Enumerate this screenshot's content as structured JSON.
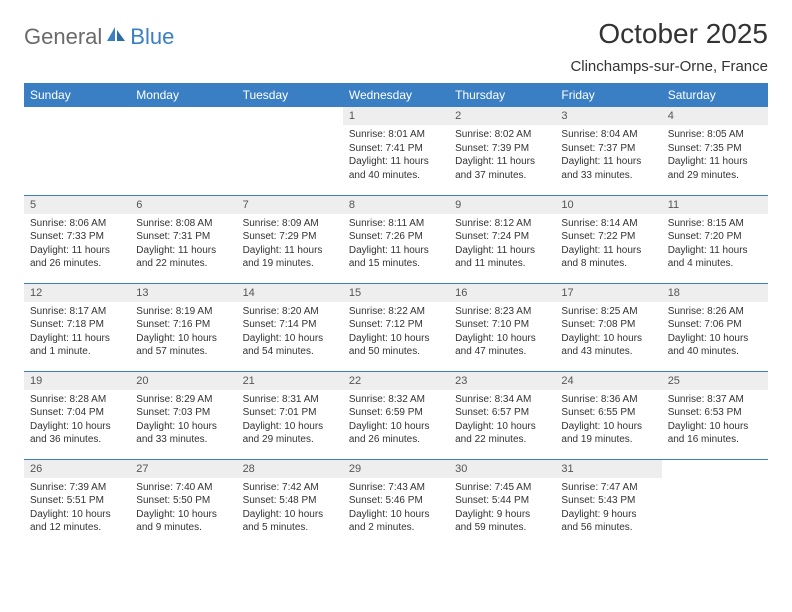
{
  "logo": {
    "part1": "General",
    "part2": "Blue"
  },
  "title": "October 2025",
  "location": "Clinchamps-sur-Orne, France",
  "colors": {
    "header_bg": "#3a7fc4",
    "header_text": "#ffffff",
    "daynum_bg": "#eeeeee",
    "border": "#3a7fc4",
    "text": "#333333",
    "logo_gray": "#6b6b6b",
    "logo_blue": "#3a7fc4"
  },
  "weekdays": [
    "Sunday",
    "Monday",
    "Tuesday",
    "Wednesday",
    "Thursday",
    "Friday",
    "Saturday"
  ],
  "weeks": [
    [
      null,
      null,
      null,
      {
        "n": "1",
        "sr": "8:01 AM",
        "ss": "7:41 PM",
        "dl": "11 hours and 40 minutes."
      },
      {
        "n": "2",
        "sr": "8:02 AM",
        "ss": "7:39 PM",
        "dl": "11 hours and 37 minutes."
      },
      {
        "n": "3",
        "sr": "8:04 AM",
        "ss": "7:37 PM",
        "dl": "11 hours and 33 minutes."
      },
      {
        "n": "4",
        "sr": "8:05 AM",
        "ss": "7:35 PM",
        "dl": "11 hours and 29 minutes."
      }
    ],
    [
      {
        "n": "5",
        "sr": "8:06 AM",
        "ss": "7:33 PM",
        "dl": "11 hours and 26 minutes."
      },
      {
        "n": "6",
        "sr": "8:08 AM",
        "ss": "7:31 PM",
        "dl": "11 hours and 22 minutes."
      },
      {
        "n": "7",
        "sr": "8:09 AM",
        "ss": "7:29 PM",
        "dl": "11 hours and 19 minutes."
      },
      {
        "n": "8",
        "sr": "8:11 AM",
        "ss": "7:26 PM",
        "dl": "11 hours and 15 minutes."
      },
      {
        "n": "9",
        "sr": "8:12 AM",
        "ss": "7:24 PM",
        "dl": "11 hours and 11 minutes."
      },
      {
        "n": "10",
        "sr": "8:14 AM",
        "ss": "7:22 PM",
        "dl": "11 hours and 8 minutes."
      },
      {
        "n": "11",
        "sr": "8:15 AM",
        "ss": "7:20 PM",
        "dl": "11 hours and 4 minutes."
      }
    ],
    [
      {
        "n": "12",
        "sr": "8:17 AM",
        "ss": "7:18 PM",
        "dl": "11 hours and 1 minute."
      },
      {
        "n": "13",
        "sr": "8:19 AM",
        "ss": "7:16 PM",
        "dl": "10 hours and 57 minutes."
      },
      {
        "n": "14",
        "sr": "8:20 AM",
        "ss": "7:14 PM",
        "dl": "10 hours and 54 minutes."
      },
      {
        "n": "15",
        "sr": "8:22 AM",
        "ss": "7:12 PM",
        "dl": "10 hours and 50 minutes."
      },
      {
        "n": "16",
        "sr": "8:23 AM",
        "ss": "7:10 PM",
        "dl": "10 hours and 47 minutes."
      },
      {
        "n": "17",
        "sr": "8:25 AM",
        "ss": "7:08 PM",
        "dl": "10 hours and 43 minutes."
      },
      {
        "n": "18",
        "sr": "8:26 AM",
        "ss": "7:06 PM",
        "dl": "10 hours and 40 minutes."
      }
    ],
    [
      {
        "n": "19",
        "sr": "8:28 AM",
        "ss": "7:04 PM",
        "dl": "10 hours and 36 minutes."
      },
      {
        "n": "20",
        "sr": "8:29 AM",
        "ss": "7:03 PM",
        "dl": "10 hours and 33 minutes."
      },
      {
        "n": "21",
        "sr": "8:31 AM",
        "ss": "7:01 PM",
        "dl": "10 hours and 29 minutes."
      },
      {
        "n": "22",
        "sr": "8:32 AM",
        "ss": "6:59 PM",
        "dl": "10 hours and 26 minutes."
      },
      {
        "n": "23",
        "sr": "8:34 AM",
        "ss": "6:57 PM",
        "dl": "10 hours and 22 minutes."
      },
      {
        "n": "24",
        "sr": "8:36 AM",
        "ss": "6:55 PM",
        "dl": "10 hours and 19 minutes."
      },
      {
        "n": "25",
        "sr": "8:37 AM",
        "ss": "6:53 PM",
        "dl": "10 hours and 16 minutes."
      }
    ],
    [
      {
        "n": "26",
        "sr": "7:39 AM",
        "ss": "5:51 PM",
        "dl": "10 hours and 12 minutes."
      },
      {
        "n": "27",
        "sr": "7:40 AM",
        "ss": "5:50 PM",
        "dl": "10 hours and 9 minutes."
      },
      {
        "n": "28",
        "sr": "7:42 AM",
        "ss": "5:48 PM",
        "dl": "10 hours and 5 minutes."
      },
      {
        "n": "29",
        "sr": "7:43 AM",
        "ss": "5:46 PM",
        "dl": "10 hours and 2 minutes."
      },
      {
        "n": "30",
        "sr": "7:45 AM",
        "ss": "5:44 PM",
        "dl": "9 hours and 59 minutes."
      },
      {
        "n": "31",
        "sr": "7:47 AM",
        "ss": "5:43 PM",
        "dl": "9 hours and 56 minutes."
      },
      null
    ]
  ],
  "labels": {
    "sunrise": "Sunrise:",
    "sunset": "Sunset:",
    "daylight": "Daylight:"
  }
}
